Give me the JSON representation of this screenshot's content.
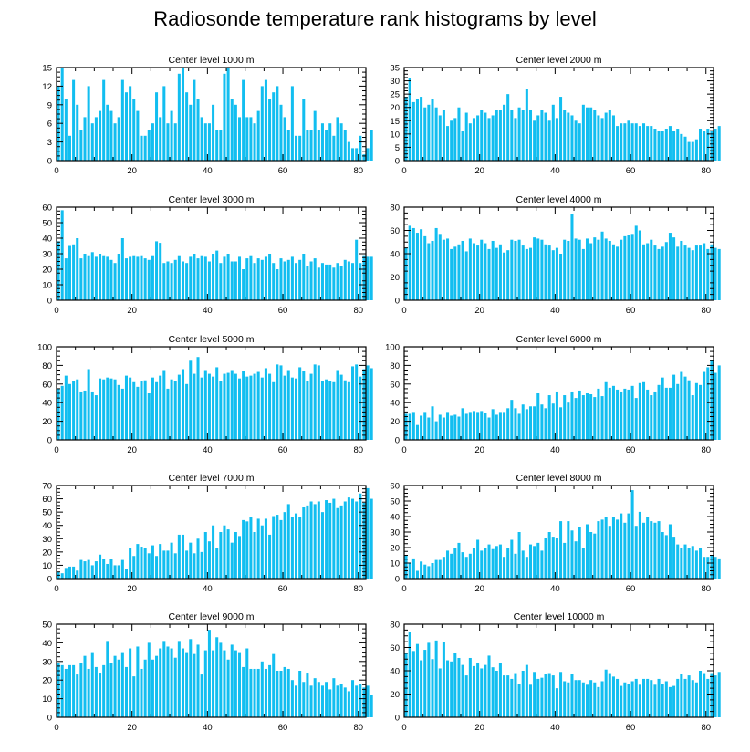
{
  "figure": {
    "title": "Radiosonde temperature rank histograms by level"
  },
  "colors": {
    "bar": "#12BEF0",
    "axis": "#000000",
    "background": "#FFFFFF"
  },
  "chart_data": [
    {
      "type": "bar",
      "title": "Center level 1000 m",
      "xlim": [
        0,
        82
      ],
      "ylim": [
        0,
        15
      ],
      "xticks": [
        0,
        20,
        40,
        60,
        80
      ],
      "yticks": [
        0,
        3,
        6,
        9,
        12,
        15
      ],
      "values": [
        12,
        15,
        10,
        4,
        13,
        9,
        5,
        7,
        12,
        6,
        7,
        8,
        13,
        9,
        8,
        6,
        7,
        13,
        11,
        12,
        10,
        8,
        4,
        4,
        5,
        6,
        11,
        7,
        12,
        6,
        8,
        6,
        14,
        15,
        11,
        9,
        13,
        10,
        7,
        6,
        6,
        9,
        5,
        5,
        14,
        15,
        10,
        9,
        7,
        13,
        7,
        7,
        6,
        8,
        12,
        13,
        10,
        11,
        12,
        9,
        7,
        5,
        12,
        4,
        4,
        10,
        5,
        5,
        8,
        5,
        6,
        5,
        6,
        4,
        7,
        6,
        5,
        3,
        2,
        2,
        4,
        1,
        2,
        5
      ]
    },
    {
      "type": "bar",
      "title": "Center level 2000 m",
      "xlim": [
        0,
        82
      ],
      "ylim": [
        0,
        35
      ],
      "xticks": [
        0,
        20,
        40,
        60,
        80
      ],
      "yticks": [
        0,
        5,
        10,
        15,
        20,
        25,
        30,
        35
      ],
      "values": [
        24,
        31,
        22,
        23,
        24,
        20,
        21,
        23,
        20,
        17,
        19,
        13,
        15,
        16,
        20,
        11,
        18,
        14,
        16,
        17,
        19,
        18,
        16,
        17,
        19,
        19,
        21,
        25,
        19,
        16,
        20,
        19,
        27,
        19,
        15,
        17,
        19,
        18,
        15,
        21,
        16,
        24,
        19,
        18,
        17,
        15,
        14,
        21,
        20,
        20,
        19,
        17,
        16,
        18,
        19,
        17,
        13,
        14,
        14,
        15,
        14,
        14,
        13,
        14,
        13,
        13,
        12,
        11,
        11,
        12,
        13,
        11,
        12,
        10,
        9,
        7,
        7,
        8,
        12,
        11,
        12,
        11,
        12,
        13
      ]
    },
    {
      "type": "bar",
      "title": "Center level 3000 m",
      "xlim": [
        0,
        82
      ],
      "ylim": [
        0,
        60
      ],
      "xticks": [
        0,
        20,
        40,
        60,
        80
      ],
      "yticks": [
        0,
        10,
        20,
        30,
        40,
        50,
        60
      ],
      "values": [
        38,
        58,
        27,
        35,
        36,
        40,
        27,
        30,
        29,
        31,
        28,
        30,
        29,
        28,
        26,
        24,
        30,
        40,
        27,
        28,
        29,
        28,
        29,
        27,
        26,
        29,
        38,
        37,
        24,
        25,
        24,
        26,
        29,
        25,
        24,
        28,
        30,
        27,
        29,
        28,
        25,
        30,
        32,
        24,
        28,
        30,
        25,
        25,
        28,
        20,
        27,
        29,
        24,
        27,
        26,
        28,
        30,
        24,
        20,
        27,
        25,
        26,
        28,
        24,
        26,
        30,
        22,
        25,
        27,
        21,
        24,
        23,
        23,
        21,
        24,
        22,
        26,
        25,
        24,
        39,
        24,
        29,
        28,
        28
      ]
    },
    {
      "type": "bar",
      "title": "Center level 4000 m",
      "xlim": [
        0,
        82
      ],
      "ylim": [
        0,
        80
      ],
      "xticks": [
        0,
        20,
        40,
        60,
        80
      ],
      "yticks": [
        0,
        20,
        40,
        60,
        80
      ],
      "values": [
        45,
        64,
        62,
        58,
        61,
        55,
        49,
        51,
        62,
        57,
        52,
        53,
        44,
        46,
        48,
        51,
        42,
        53,
        49,
        47,
        52,
        49,
        44,
        51,
        45,
        48,
        41,
        43,
        52,
        51,
        52,
        47,
        44,
        45,
        54,
        53,
        52,
        48,
        47,
        43,
        45,
        40,
        52,
        51,
        74,
        53,
        52,
        44,
        53,
        49,
        54,
        52,
        59,
        53,
        51,
        48,
        46,
        52,
        55,
        56,
        57,
        64,
        60,
        48,
        49,
        52,
        47,
        44,
        46,
        50,
        58,
        54,
        46,
        51,
        47,
        45,
        43,
        47,
        47,
        49,
        44,
        48,
        45,
        44
      ]
    },
    {
      "type": "bar",
      "title": "Center level 5000 m",
      "xlim": [
        0,
        82
      ],
      "ylim": [
        0,
        100
      ],
      "xticks": [
        0,
        20,
        40,
        60,
        80
      ],
      "yticks": [
        0,
        20,
        40,
        60,
        80,
        100
      ],
      "values": [
        55,
        58,
        69,
        60,
        63,
        65,
        52,
        53,
        76,
        52,
        48,
        66,
        65,
        67,
        66,
        65,
        59,
        55,
        69,
        67,
        62,
        57,
        63,
        64,
        50,
        67,
        62,
        69,
        75,
        55,
        65,
        63,
        70,
        76,
        60,
        85,
        71,
        89,
        67,
        75,
        71,
        68,
        78,
        63,
        71,
        72,
        75,
        71,
        66,
        74,
        68,
        69,
        71,
        73,
        67,
        77,
        71,
        62,
        81,
        80,
        69,
        75,
        67,
        66,
        78,
        74,
        63,
        71,
        81,
        80,
        63,
        65,
        63,
        62,
        75,
        70,
        64,
        62,
        79,
        81,
        68,
        76,
        80,
        77
      ]
    },
    {
      "type": "bar",
      "title": "Center level 6000 m",
      "xlim": [
        0,
        82
      ],
      "ylim": [
        0,
        100
      ],
      "xticks": [
        0,
        20,
        40,
        60,
        80
      ],
      "yticks": [
        0,
        20,
        40,
        60,
        80,
        100
      ],
      "values": [
        28,
        28,
        30,
        16,
        26,
        30,
        24,
        36,
        20,
        27,
        24,
        30,
        26,
        27,
        25,
        34,
        28,
        30,
        31,
        30,
        31,
        29,
        24,
        33,
        27,
        30,
        30,
        34,
        43,
        34,
        28,
        38,
        33,
        36,
        36,
        50,
        38,
        34,
        48,
        39,
        52,
        35,
        48,
        40,
        52,
        45,
        53,
        48,
        50,
        49,
        46,
        55,
        47,
        62,
        56,
        58,
        54,
        52,
        55,
        54,
        58,
        45,
        61,
        62,
        54,
        48,
        52,
        59,
        67,
        56,
        56,
        70,
        60,
        73,
        68,
        64,
        48,
        61,
        59,
        73,
        78,
        86,
        72,
        80
      ]
    },
    {
      "type": "bar",
      "title": "Center level 7000 m",
      "xlim": [
        0,
        82
      ],
      "ylim": [
        0,
        70
      ],
      "xticks": [
        0,
        20,
        40,
        60,
        80
      ],
      "yticks": [
        0,
        10,
        20,
        30,
        40,
        50,
        60,
        70
      ],
      "values": [
        5,
        4,
        8,
        9,
        9,
        6,
        14,
        13,
        14,
        10,
        13,
        18,
        15,
        11,
        15,
        10,
        10,
        14,
        7,
        23,
        17,
        26,
        24,
        23,
        19,
        25,
        17,
        26,
        21,
        21,
        27,
        19,
        33,
        33,
        21,
        27,
        19,
        30,
        20,
        35,
        28,
        40,
        23,
        35,
        40,
        37,
        27,
        35,
        32,
        44,
        43,
        46,
        35,
        45,
        40,
        45,
        33,
        47,
        48,
        44,
        50,
        56,
        46,
        49,
        46,
        54,
        55,
        58,
        56,
        58,
        50,
        59,
        57,
        60,
        53,
        55,
        58,
        61,
        60,
        58,
        64,
        57,
        68,
        60
      ]
    },
    {
      "type": "bar",
      "title": "Center level 8000 m",
      "xlim": [
        0,
        82
      ],
      "ylim": [
        0,
        60
      ],
      "xticks": [
        0,
        20,
        40,
        60,
        80
      ],
      "yticks": [
        0,
        10,
        20,
        30,
        40,
        50,
        60
      ],
      "values": [
        15,
        10,
        13,
        5,
        11,
        9,
        8,
        10,
        12,
        12,
        14,
        18,
        16,
        20,
        23,
        17,
        14,
        16,
        20,
        25,
        18,
        20,
        22,
        19,
        21,
        22,
        14,
        20,
        25,
        16,
        30,
        18,
        14,
        22,
        21,
        23,
        18,
        26,
        30,
        27,
        26,
        37,
        23,
        37,
        31,
        24,
        33,
        20,
        35,
        30,
        29,
        37,
        38,
        40,
        34,
        40,
        38,
        42,
        36,
        42,
        57,
        34,
        43,
        36,
        40,
        37,
        36,
        37,
        30,
        28,
        35,
        27,
        22,
        20,
        22,
        20,
        21,
        18,
        20,
        14,
        14,
        15,
        14,
        13
      ]
    },
    {
      "type": "bar",
      "title": "Center level 9000 m",
      "xlim": [
        0,
        82
      ],
      "ylim": [
        0,
        50
      ],
      "xticks": [
        0,
        20,
        40,
        60,
        80
      ],
      "yticks": [
        0,
        10,
        20,
        30,
        40,
        50
      ],
      "values": [
        29,
        28,
        26,
        28,
        28,
        23,
        29,
        33,
        26,
        35,
        27,
        24,
        28,
        41,
        29,
        33,
        31,
        35,
        27,
        37,
        22,
        38,
        26,
        31,
        40,
        31,
        33,
        37,
        41,
        38,
        37,
        32,
        41,
        37,
        35,
        42,
        34,
        39,
        23,
        36,
        47,
        36,
        43,
        40,
        36,
        31,
        39,
        36,
        35,
        27,
        37,
        26,
        26,
        26,
        30,
        26,
        28,
        34,
        25,
        25,
        27,
        26,
        20,
        17,
        25,
        19,
        24,
        17,
        21,
        19,
        17,
        19,
        15,
        21,
        17,
        18,
        16,
        14,
        20,
        17,
        18,
        16,
        17,
        12
      ]
    },
    {
      "type": "bar",
      "title": "Center level 10000 m",
      "xlim": [
        0,
        82
      ],
      "ylim": [
        0,
        80
      ],
      "xticks": [
        0,
        20,
        40,
        60,
        80
      ],
      "yticks": [
        0,
        20,
        40,
        60,
        80
      ],
      "values": [
        55,
        73,
        57,
        63,
        49,
        58,
        64,
        50,
        66,
        42,
        65,
        49,
        48,
        55,
        51,
        45,
        36,
        51,
        44,
        47,
        42,
        45,
        53,
        43,
        40,
        47,
        36,
        36,
        33,
        38,
        29,
        40,
        45,
        28,
        39,
        33,
        34,
        37,
        38,
        36,
        25,
        39,
        31,
        30,
        37,
        32,
        32,
        30,
        28,
        32,
        30,
        26,
        31,
        41,
        38,
        35,
        33,
        27,
        30,
        29,
        31,
        33,
        28,
        33,
        33,
        32,
        28,
        33,
        29,
        31,
        26,
        27,
        33,
        37,
        33,
        36,
        32,
        30,
        40,
        38,
        33,
        38,
        36,
        39
      ]
    }
  ]
}
